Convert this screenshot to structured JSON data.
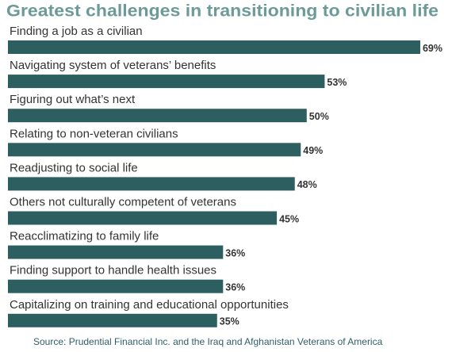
{
  "chart_data": {
    "type": "bar",
    "orientation": "horizontal",
    "title": "Greatest challenges in transitioning to civilian life",
    "categories": [
      "Finding a job as a civilian",
      "Navigating system of veterans’ benefits",
      "Figuring out what’s next",
      "Relating to non-veteran civilians",
      "Readjusting to social life",
      "Others not culturally competent of veterans",
      "Reacclimatizing to family life",
      "Finding support to handle health issues",
      "Capitalizing on training and educational opportunities"
    ],
    "values": [
      69,
      53,
      50,
      49,
      48,
      45,
      36,
      36,
      35
    ],
    "value_labels": [
      "69%",
      "53%",
      "50%",
      "49%",
      "48%",
      "45%",
      "36%",
      "36%",
      "35%"
    ],
    "color": "#2e5f60",
    "source": "Source: Prudential Financial Inc. and the Iraq and Afghanistan Veterans of America"
  }
}
